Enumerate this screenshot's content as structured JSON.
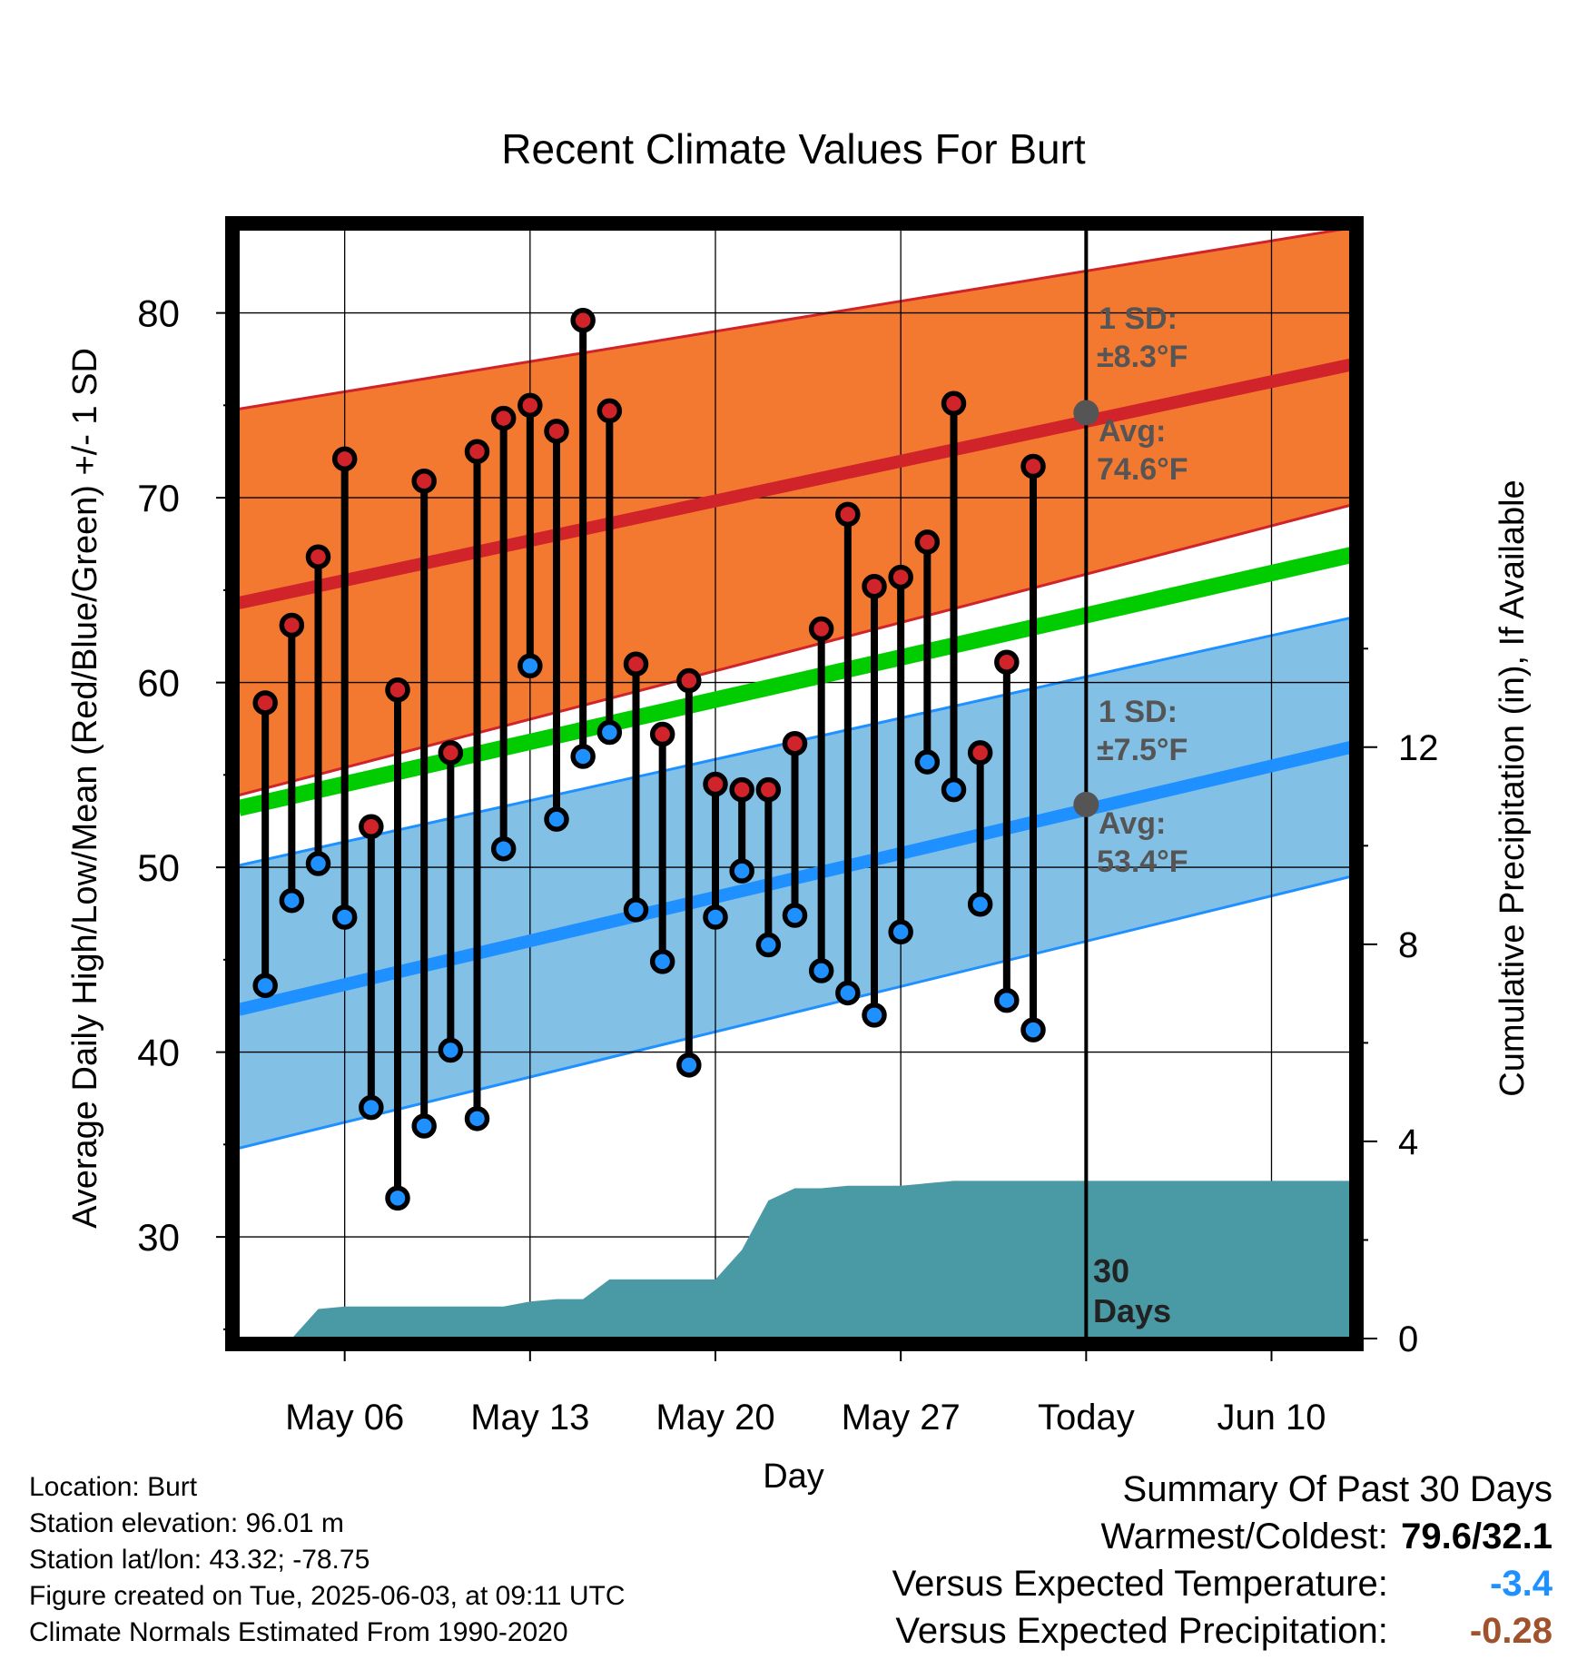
{
  "chart_data": {
    "type": "line",
    "title": "Recent Climate Values For Burt",
    "xlabel": "Day",
    "ylabel": "Average Daily High/Low/Mean (Red/Blue/Green) +/- 1 SD",
    "y2label": "Cumulative Precipitation (in), If Available",
    "x_ticks": [
      "May 06",
      "May 13",
      "May 20",
      "May 27",
      "Today",
      "Jun 10"
    ],
    "y_ticks": [
      "30",
      "40",
      "50",
      "60",
      "70",
      "80"
    ],
    "y2_ticks": [
      "0",
      "4",
      "8",
      "12"
    ],
    "ylim": [
      24.5,
      84.5
    ],
    "y2lim": [
      0,
      22.5
    ],
    "xlim": [
      "2025-05-02",
      "2025-06-13"
    ],
    "today": "2025-06-03",
    "grid": true,
    "normals": {
      "x": [
        "2025-05-02",
        "2025-06-13"
      ],
      "high_avg": [
        64.3,
        77.2
      ],
      "high_sd_upper": [
        74.8,
        84.6
      ],
      "high_sd_lower": [
        53.9,
        69.6
      ],
      "low_avg": [
        42.3,
        56.5
      ],
      "low_sd_upper": [
        50.1,
        63.5
      ],
      "low_sd_lower": [
        34.8,
        49.5
      ],
      "mean_avg": [
        53.2,
        66.9
      ]
    },
    "series": [
      {
        "name": "High",
        "color": "#d0232a",
        "x": [
          "2025-05-03",
          "2025-05-04",
          "2025-05-05",
          "2025-05-06",
          "2025-05-07",
          "2025-05-08",
          "2025-05-09",
          "2025-05-10",
          "2025-05-11",
          "2025-05-12",
          "2025-05-13",
          "2025-05-14",
          "2025-05-15",
          "2025-05-16",
          "2025-05-17",
          "2025-05-18",
          "2025-05-19",
          "2025-05-20",
          "2025-05-21",
          "2025-05-22",
          "2025-05-23",
          "2025-05-24",
          "2025-05-25",
          "2025-05-26",
          "2025-05-27",
          "2025-05-28",
          "2025-05-29",
          "2025-05-30",
          "2025-05-31",
          "2025-06-01",
          "2025-06-02"
        ],
        "values": [
          58.9,
          63.1,
          66.8,
          72.1,
          52.2,
          59.6,
          70.9,
          56.2,
          72.5,
          74.3,
          75.0,
          73.6,
          79.6,
          74.7,
          61.0,
          57.2,
          60.1,
          54.5,
          54.2,
          54.2,
          56.7,
          62.9,
          69.1,
          65.2,
          65.7,
          67.6,
          75.1,
          56.2,
          61.1,
          71.7,
          null
        ]
      },
      {
        "name": "Low",
        "color": "#1e90ff",
        "x": [
          "2025-05-03",
          "2025-05-04",
          "2025-05-05",
          "2025-05-06",
          "2025-05-07",
          "2025-05-08",
          "2025-05-09",
          "2025-05-10",
          "2025-05-11",
          "2025-05-12",
          "2025-05-13",
          "2025-05-14",
          "2025-05-15",
          "2025-05-16",
          "2025-05-17",
          "2025-05-18",
          "2025-05-19",
          "2025-05-20",
          "2025-05-21",
          "2025-05-22",
          "2025-05-23",
          "2025-05-24",
          "2025-05-25",
          "2025-05-26",
          "2025-05-27",
          "2025-05-28",
          "2025-05-29",
          "2025-05-30",
          "2025-05-31",
          "2025-06-01",
          "2025-06-02"
        ],
        "values": [
          43.6,
          48.2,
          50.2,
          47.3,
          37.0,
          32.1,
          36.0,
          40.1,
          36.4,
          51.0,
          60.9,
          52.6,
          56.0,
          57.3,
          47.7,
          44.9,
          39.3,
          47.3,
          49.8,
          45.8,
          47.4,
          44.4,
          43.2,
          42.0,
          46.5,
          55.7,
          54.2,
          48.0,
          42.8,
          41.2,
          null
        ]
      },
      {
        "name": "Cumulative Precipitation",
        "color": "#4a9aa5",
        "x": [
          "2025-05-03",
          "2025-05-04",
          "2025-05-05",
          "2025-05-06",
          "2025-05-07",
          "2025-05-08",
          "2025-05-09",
          "2025-05-10",
          "2025-05-11",
          "2025-05-12",
          "2025-05-13",
          "2025-05-14",
          "2025-05-15",
          "2025-05-16",
          "2025-05-17",
          "2025-05-18",
          "2025-05-19",
          "2025-05-20",
          "2025-05-21",
          "2025-05-22",
          "2025-05-23",
          "2025-05-24",
          "2025-05-25",
          "2025-05-26",
          "2025-05-27",
          "2025-05-28",
          "2025-05-29",
          "2025-05-30",
          "2025-05-31",
          "2025-06-01",
          "2025-06-02",
          "2025-06-03",
          "2025-06-13"
        ],
        "values": [
          0.0,
          0.0,
          0.6,
          0.65,
          0.65,
          0.65,
          0.65,
          0.65,
          0.65,
          0.65,
          0.75,
          0.8,
          0.8,
          1.2,
          1.2,
          1.2,
          1.2,
          1.2,
          1.8,
          2.8,
          3.05,
          3.05,
          3.1,
          3.1,
          3.1,
          3.15,
          3.2,
          3.2,
          3.2,
          3.2,
          3.2,
          3.2,
          3.2
        ]
      }
    ],
    "annotations": {
      "high_sd": "1 SD:",
      "high_sd_value": "±8.3°F",
      "high_avg_label": "Avg:",
      "high_avg_value": "74.6°F",
      "low_sd": "1 SD:",
      "low_sd_value": "±7.5°F",
      "low_avg_label": "Avg:",
      "low_avg_value": "53.4°F",
      "days_line1": "30",
      "days_line2": "Days"
    },
    "today_high_avg": 74.6,
    "today_low_avg": 53.4,
    "colors": {
      "high_band": "#f47930",
      "high_line": "#d0232a",
      "low_band": "#82c0e6",
      "low_line": "#1e90ff",
      "mean_line": "#00cc00",
      "precip": "#4a9aa5",
      "marker_today": "#555555"
    }
  },
  "footer": {
    "location": "Location: Burt",
    "elevation": "Station elevation: 96.01 m",
    "latlon": "Station lat/lon: 43.32; -78.75",
    "created": "Figure created on Tue, 2025-06-03, at 09:11 UTC",
    "normals": "Climate Normals Estimated From 1990-2020"
  },
  "summary": {
    "title": "Summary Of Past 30 Days",
    "warm_cold_label": "Warmest/Coldest:",
    "warm_cold_value": "79.6/32.1",
    "temp_label": "Versus Expected Temperature:",
    "temp_value": "-3.4",
    "temp_color": "#1e90ff",
    "precip_label": "Versus Expected Precipitation:",
    "precip_value": "-0.28",
    "precip_color": "#a0522d"
  }
}
